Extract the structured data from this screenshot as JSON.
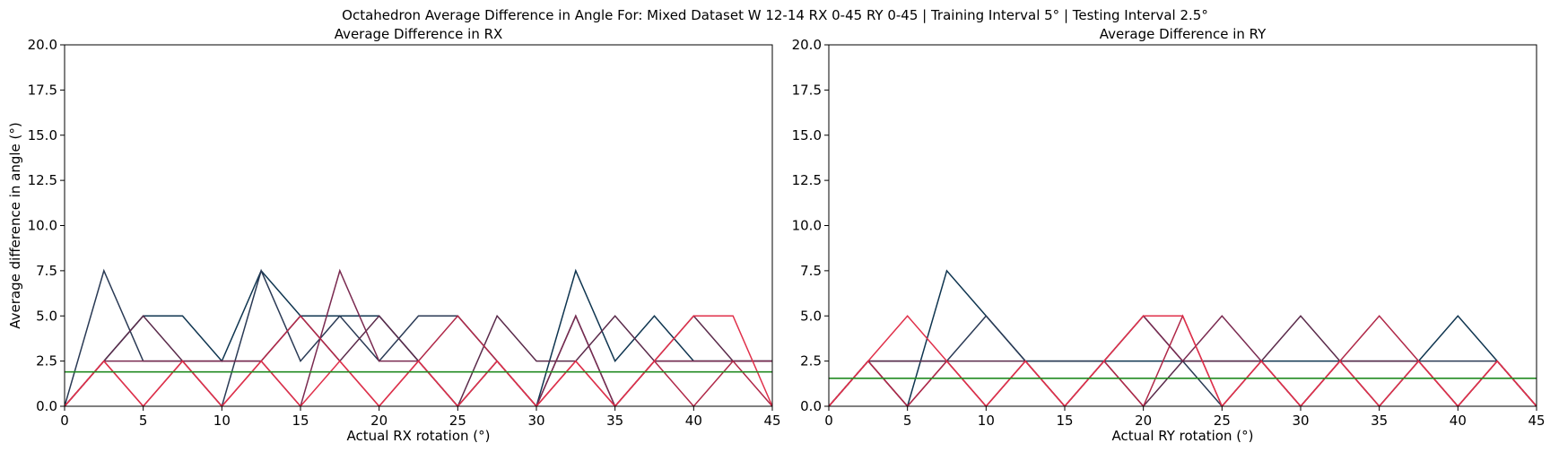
{
  "figure_title": "Octahedron Average Difference in Angle For: Mixed Dataset W 12-14 RX 0-45 RY 0-45 | Training Interval 5° | Testing Interval 2.5°",
  "colors": {
    "mean_line": "#228b22",
    "series_palette": [
      "#0f3550",
      "#2a3a55",
      "#5a2a4a",
      "#7a2a50",
      "#b02848",
      "#e0304a"
    ]
  },
  "chart_data": [
    {
      "type": "line",
      "title": "Average Difference in RX",
      "xlabel": "Actual RX rotation (°)",
      "ylabel": "Average difference in angle (°)",
      "xlim": [
        0,
        45
      ],
      "ylim": [
        0,
        20
      ],
      "xticks": [
        "0",
        "5",
        "10",
        "15",
        "20",
        "25",
        "30",
        "35",
        "40",
        "45"
      ],
      "yticks": [
        "0.0",
        "2.5",
        "5.0",
        "7.5",
        "10.0",
        "12.5",
        "15.0",
        "17.5",
        "20.0"
      ],
      "grid": false,
      "legend": "none",
      "x": [
        0,
        2.5,
        5,
        7.5,
        10,
        12.5,
        15,
        17.5,
        20,
        22.5,
        25,
        27.5,
        30,
        32.5,
        35,
        37.5,
        40,
        42.5,
        45
      ],
      "series": [
        {
          "color": "#0f3550",
          "values": [
            0,
            2.5,
            5,
            5,
            2.5,
            7.5,
            5,
            5,
            5,
            2.5,
            0,
            2.5,
            0,
            7.5,
            2.5,
            5,
            2.5,
            2.5,
            2.5
          ]
        },
        {
          "color": "#2a3a55",
          "values": [
            0,
            7.5,
            2.5,
            2.5,
            0,
            7.5,
            2.5,
            5,
            2.5,
            5,
            5,
            2.5,
            0,
            5,
            0,
            2.5,
            2.5,
            2.5,
            2.5
          ]
        },
        {
          "color": "#5a2a4a",
          "values": [
            0,
            2.5,
            5,
            2.5,
            2.5,
            2.5,
            5,
            2.5,
            5,
            2.5,
            0,
            5,
            2.5,
            2.5,
            5,
            2.5,
            5,
            2.5,
            2.5
          ]
        },
        {
          "color": "#7a2a50",
          "values": [
            0,
            2.5,
            2.5,
            2.5,
            2.5,
            2.5,
            0,
            7.5,
            2.5,
            2.5,
            0,
            2.5,
            0,
            5,
            0,
            2.5,
            2.5,
            2.5,
            2.5
          ]
        },
        {
          "color": "#b02848",
          "values": [
            0,
            2.5,
            0,
            2.5,
            0,
            2.5,
            5,
            2.5,
            0,
            2.5,
            5,
            2.5,
            0,
            2.5,
            0,
            2.5,
            0,
            2.5,
            0
          ]
        },
        {
          "color": "#e0304a",
          "values": [
            0,
            2.5,
            0,
            2.5,
            0,
            2.5,
            0,
            2.5,
            0,
            2.5,
            0,
            2.5,
            0,
            2.5,
            0,
            2.5,
            5,
            5,
            0
          ]
        }
      ],
      "mean_value": 1.9
    },
    {
      "type": "line",
      "title": "Average Difference in RY",
      "xlabel": "Actual RY rotation (°)",
      "ylabel": "",
      "xlim": [
        0,
        45
      ],
      "ylim": [
        0,
        20
      ],
      "xticks": [
        "0",
        "5",
        "10",
        "15",
        "20",
        "25",
        "30",
        "35",
        "40",
        "45"
      ],
      "yticks": [
        "0.0",
        "2.5",
        "5.0",
        "7.5",
        "10.0",
        "12.5",
        "15.0",
        "17.5",
        "20.0"
      ],
      "grid": false,
      "legend": "none",
      "x": [
        0,
        2.5,
        5,
        7.5,
        10,
        12.5,
        15,
        17.5,
        20,
        22.5,
        25,
        27.5,
        30,
        32.5,
        35,
        37.5,
        40,
        42.5,
        45
      ],
      "series": [
        {
          "color": "#0f3550",
          "values": [
            0,
            2.5,
            0,
            7.5,
            5,
            2.5,
            2.5,
            2.5,
            2.5,
            2.5,
            2.5,
            2.5,
            2.5,
            2.5,
            2.5,
            2.5,
            5,
            2.5,
            0
          ]
        },
        {
          "color": "#2a3a55",
          "values": [
            0,
            2.5,
            2.5,
            2.5,
            5,
            2.5,
            2.5,
            2.5,
            5,
            2.5,
            0,
            2.5,
            0,
            2.5,
            0,
            2.5,
            2.5,
            2.5,
            0
          ]
        },
        {
          "color": "#5a2a4a",
          "values": [
            0,
            2.5,
            2.5,
            2.5,
            2.5,
            2.5,
            0,
            2.5,
            0,
            2.5,
            2.5,
            2.5,
            5,
            2.5,
            2.5,
            2.5,
            0,
            2.5,
            0
          ]
        },
        {
          "color": "#7a2a50",
          "values": [
            0,
            2.5,
            0,
            2.5,
            0,
            2.5,
            0,
            2.5,
            5,
            2.5,
            5,
            2.5,
            0,
            2.5,
            0,
            2.5,
            0,
            2.5,
            0
          ]
        },
        {
          "color": "#b02848",
          "values": [
            0,
            2.5,
            0,
            2.5,
            0,
            2.5,
            0,
            2.5,
            0,
            5,
            0,
            2.5,
            0,
            2.5,
            5,
            2.5,
            0,
            2.5,
            0
          ]
        },
        {
          "color": "#e0304a",
          "values": [
            0,
            2.5,
            5,
            2.5,
            0,
            2.5,
            0,
            2.5,
            5,
            5,
            0,
            2.5,
            0,
            2.5,
            0,
            2.5,
            0,
            2.5,
            0
          ]
        }
      ],
      "mean_value": 1.55
    }
  ]
}
